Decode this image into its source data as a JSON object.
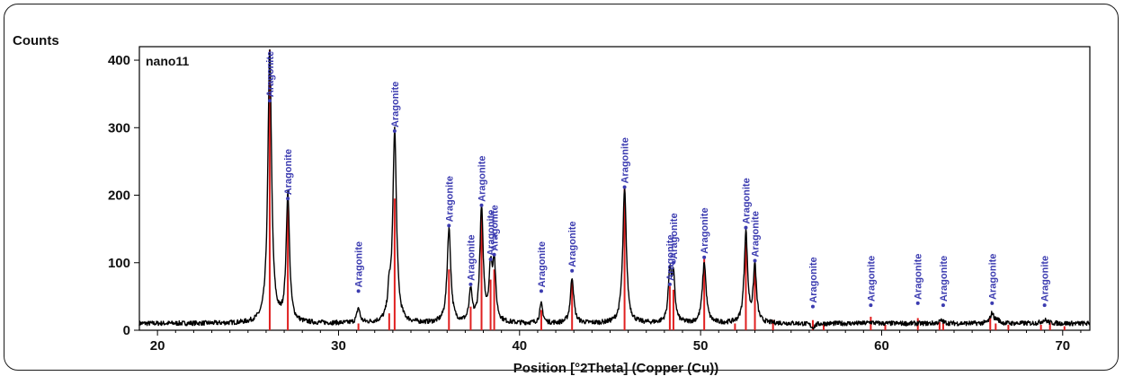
{
  "chart_data": {
    "type": "line",
    "ylabel": "Counts",
    "xlabel": "Position [°2Theta] (Copper (Cu))",
    "sample_label": "nano11",
    "xlim": [
      19,
      71.5
    ],
    "ylim": [
      0,
      420
    ],
    "x_ticks": [
      20,
      30,
      40,
      50,
      60,
      70
    ],
    "y_ticks": [
      0,
      100,
      200,
      300,
      400
    ],
    "grid": false,
    "colors": {
      "pattern": "#000000",
      "reference_lines": "#e02020",
      "peak_labels": "#3b3bb0"
    },
    "baseline": 10,
    "peaks": [
      {
        "x": 26.2,
        "y": 415,
        "w": 0.12
      },
      {
        "x": 27.2,
        "y": 200,
        "w": 0.11
      },
      {
        "x": 31.1,
        "y": 32,
        "w": 0.1
      },
      {
        "x": 32.8,
        "y": 45,
        "w": 0.1
      },
      {
        "x": 33.1,
        "y": 295,
        "w": 0.12
      },
      {
        "x": 36.1,
        "y": 150,
        "w": 0.12
      },
      {
        "x": 37.3,
        "y": 55,
        "w": 0.1
      },
      {
        "x": 37.9,
        "y": 178,
        "w": 0.11
      },
      {
        "x": 38.4,
        "y": 85,
        "w": 0.1
      },
      {
        "x": 38.6,
        "y": 95,
        "w": 0.1
      },
      {
        "x": 41.2,
        "y": 38,
        "w": 0.1
      },
      {
        "x": 42.9,
        "y": 78,
        "w": 0.11
      },
      {
        "x": 45.8,
        "y": 208,
        "w": 0.12
      },
      {
        "x": 48.3,
        "y": 85,
        "w": 0.1
      },
      {
        "x": 48.5,
        "y": 75,
        "w": 0.1
      },
      {
        "x": 50.2,
        "y": 100,
        "w": 0.12
      },
      {
        "x": 52.5,
        "y": 145,
        "w": 0.11
      },
      {
        "x": 53.0,
        "y": 95,
        "w": 0.1
      },
      {
        "x": 56.2,
        "y": 4,
        "w": 0.15
      },
      {
        "x": 59.4,
        "y": 12,
        "w": 0.15
      },
      {
        "x": 62.0,
        "y": 10,
        "w": 0.15
      },
      {
        "x": 63.3,
        "y": 14,
        "w": 0.15
      },
      {
        "x": 66.1,
        "y": 25,
        "w": 0.12
      },
      {
        "x": 66.4,
        "y": 15,
        "w": 0.12
      },
      {
        "x": 69.0,
        "y": 15,
        "w": 0.2
      }
    ],
    "reference_lines": [
      {
        "x": 26.2,
        "y": 415
      },
      {
        "x": 27.2,
        "y": 200
      },
      {
        "x": 31.1,
        "y": 10
      },
      {
        "x": 32.8,
        "y": 25
      },
      {
        "x": 33.1,
        "y": 195
      },
      {
        "x": 36.1,
        "y": 90
      },
      {
        "x": 37.3,
        "y": 35
      },
      {
        "x": 37.9,
        "y": 170
      },
      {
        "x": 38.4,
        "y": 75
      },
      {
        "x": 38.6,
        "y": 90
      },
      {
        "x": 41.2,
        "y": 30
      },
      {
        "x": 42.9,
        "y": 75
      },
      {
        "x": 45.8,
        "y": 210
      },
      {
        "x": 48.3,
        "y": 65
      },
      {
        "x": 48.5,
        "y": 60
      },
      {
        "x": 50.2,
        "y": 110
      },
      {
        "x": 51.9,
        "y": 10
      },
      {
        "x": 52.5,
        "y": 130
      },
      {
        "x": 53.0,
        "y": 100
      },
      {
        "x": 54.0,
        "y": 15
      },
      {
        "x": 56.2,
        "y": 15
      },
      {
        "x": 56.8,
        "y": 12
      },
      {
        "x": 59.4,
        "y": 20
      },
      {
        "x": 60.2,
        "y": 8
      },
      {
        "x": 62.0,
        "y": 18
      },
      {
        "x": 63.2,
        "y": 12
      },
      {
        "x": 63.4,
        "y": 10
      },
      {
        "x": 66.0,
        "y": 18
      },
      {
        "x": 66.3,
        "y": 10
      },
      {
        "x": 67.0,
        "y": 8
      },
      {
        "x": 68.8,
        "y": 8
      },
      {
        "x": 69.3,
        "y": 12
      },
      {
        "x": 70.1,
        "y": 6
      }
    ],
    "peak_labels": [
      {
        "text": "Aragonite",
        "x": 26.2,
        "y": 340
      },
      {
        "text": "Aragonite",
        "x": 27.2,
        "y": 195
      },
      {
        "text": "Aragonite",
        "x": 31.1,
        "y": 58
      },
      {
        "text": "Aragonite",
        "x": 33.1,
        "y": 295
      },
      {
        "text": "Aragonite",
        "x": 36.1,
        "y": 155
      },
      {
        "text": "Aragonite",
        "x": 37.3,
        "y": 68
      },
      {
        "text": "Aragonite",
        "x": 37.9,
        "y": 185
      },
      {
        "text": "Aragonite",
        "x": 38.4,
        "y": 105
      },
      {
        "text": "Aragonite",
        "x": 38.6,
        "y": 112
      },
      {
        "text": "Aragonite",
        "x": 41.2,
        "y": 58
      },
      {
        "text": "Aragonite",
        "x": 42.9,
        "y": 88
      },
      {
        "text": "Aragonite",
        "x": 45.8,
        "y": 212
      },
      {
        "text": "Aragonite",
        "x": 48.3,
        "y": 68
      },
      {
        "text": "Aragonite",
        "x": 48.5,
        "y": 100
      },
      {
        "text": "Aragonite",
        "x": 50.2,
        "y": 108
      },
      {
        "text": "Aragonite",
        "x": 52.5,
        "y": 152
      },
      {
        "text": "Aragonite",
        "x": 53.0,
        "y": 103
      },
      {
        "text": "Aragonite",
        "x": 56.2,
        "y": 35
      },
      {
        "text": "Aragonite",
        "x": 59.4,
        "y": 37
      },
      {
        "text": "Aragonite",
        "x": 62.0,
        "y": 40
      },
      {
        "text": "Aragonite",
        "x": 63.4,
        "y": 37
      },
      {
        "text": "Aragonite",
        "x": 66.1,
        "y": 40
      },
      {
        "text": "Aragonite",
        "x": 69.0,
        "y": 37
      }
    ]
  }
}
